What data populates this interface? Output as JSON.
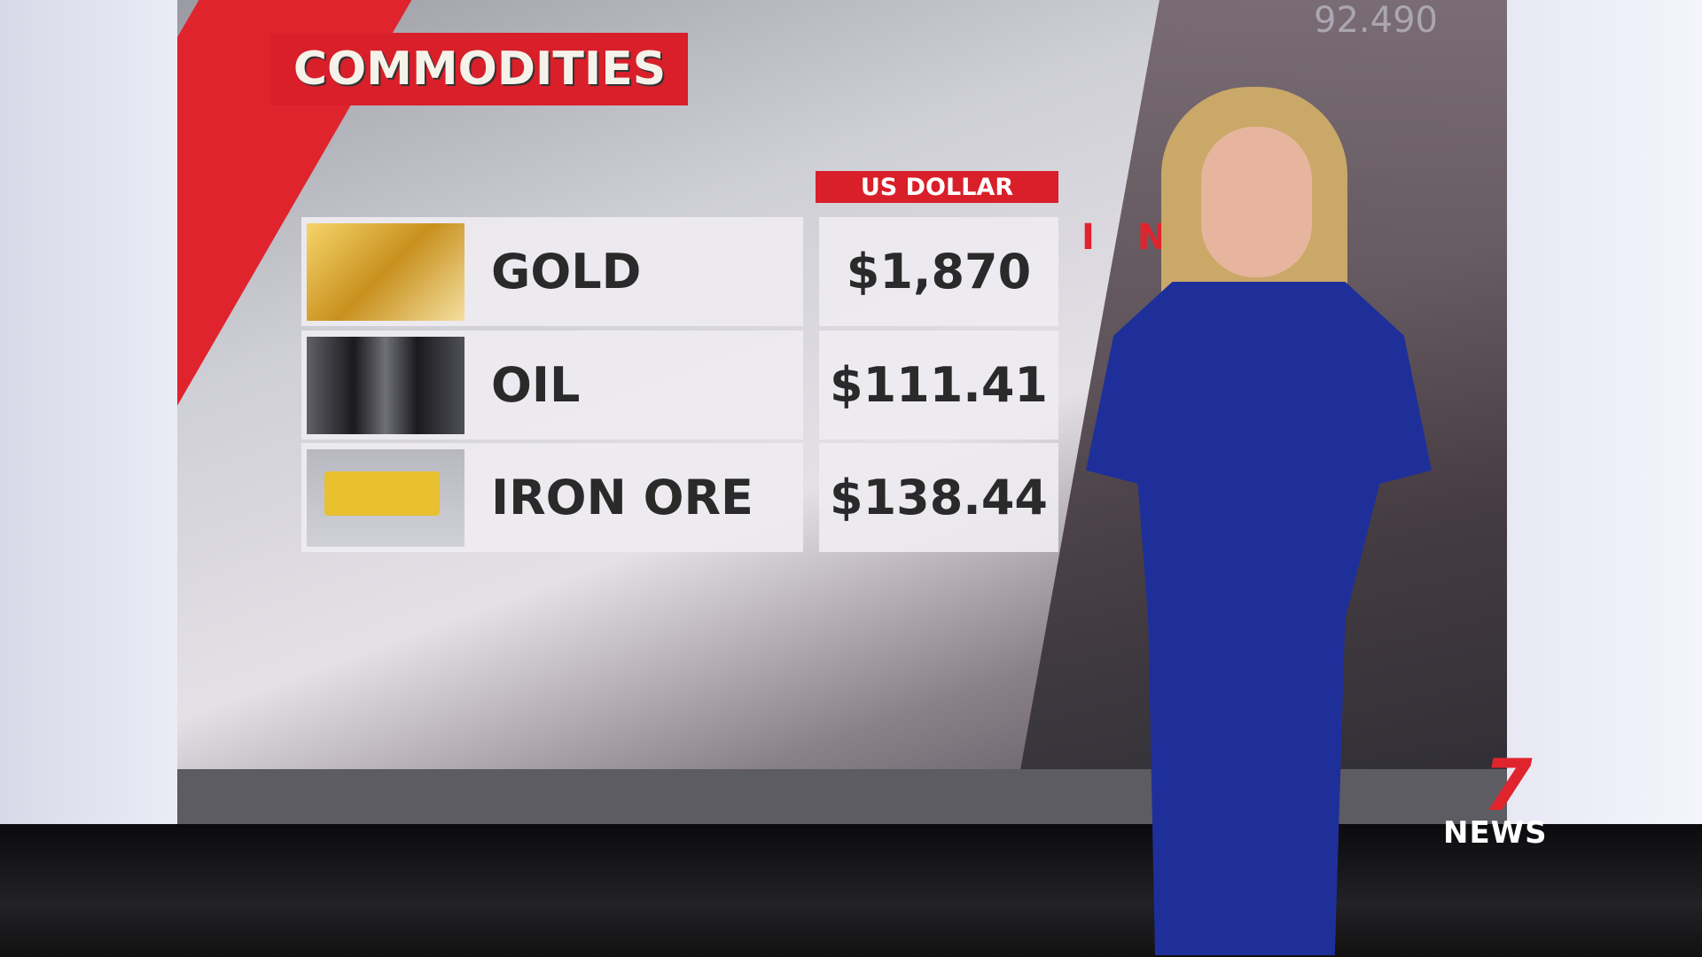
{
  "graphic": {
    "title": "COMMODITIES",
    "column_header": "US DOLLAR",
    "rows": [
      {
        "name": "GOLD",
        "value": "$1,870",
        "icon": "gold-bars-icon"
      },
      {
        "name": "OIL",
        "value": "$111.41",
        "icon": "oil-barrels-icon"
      },
      {
        "name": "IRON ORE",
        "value": "$138.44",
        "icon": "mining-truck-icon"
      }
    ]
  },
  "background": {
    "number": "92.490",
    "word_fragment": "IN    E"
  },
  "logo": {
    "seven": "7",
    "news": "NEWS"
  },
  "colors": {
    "accent_red": "#d81f2a",
    "dress_blue": "#1f2f9a"
  }
}
